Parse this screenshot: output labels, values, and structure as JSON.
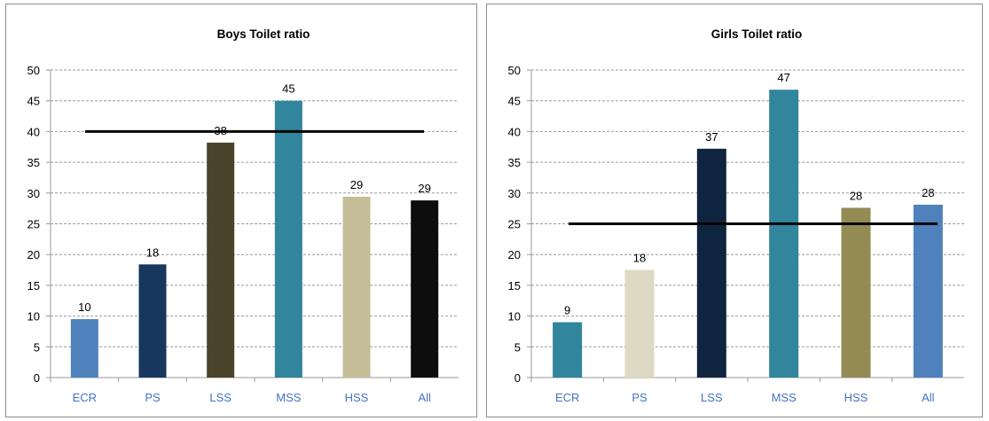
{
  "chart_data": [
    {
      "type": "bar",
      "title": "Boys Toilet ratio",
      "categories": [
        "ECR",
        "PS",
        "LSS",
        "MSS",
        "HSS",
        "All"
      ],
      "values": [
        9.5,
        18.4,
        38.2,
        45.0,
        29.4,
        28.8
      ],
      "data_labels": [
        "10",
        "18",
        "38",
        "45",
        "29",
        "29"
      ],
      "colors": [
        "#4f81bd",
        "#17375e",
        "#4a452a",
        "#31859c",
        "#c4bd97",
        "#0d0d0d"
      ],
      "reference_line": 40,
      "ylim": [
        0,
        50
      ],
      "yticks": [
        "0",
        "5",
        "10",
        "15",
        "20",
        "25",
        "30",
        "35",
        "40",
        "45",
        "50"
      ],
      "xlabel": "",
      "ylabel": "",
      "grid": true,
      "legend": "none"
    },
    {
      "type": "bar",
      "title": "Girls Toilet ratio",
      "categories": [
        "ECR",
        "PS",
        "LSS",
        "MSS",
        "HSS",
        "All"
      ],
      "values": [
        9.0,
        17.5,
        37.2,
        46.8,
        27.6,
        28.1
      ],
      "data_labels": [
        "9",
        "18",
        "37",
        "47",
        "28",
        "28"
      ],
      "colors": [
        "#31859c",
        "#ddd9c3",
        "#0f243e",
        "#31859c",
        "#948a54",
        "#4f81bd"
      ],
      "reference_line": 25,
      "ylim": [
        0,
        50
      ],
      "yticks": [
        "0",
        "5",
        "10",
        "15",
        "20",
        "25",
        "30",
        "35",
        "40",
        "45",
        "50"
      ],
      "xlabel": "",
      "ylabel": "",
      "grid": true,
      "legend": "none"
    }
  ]
}
